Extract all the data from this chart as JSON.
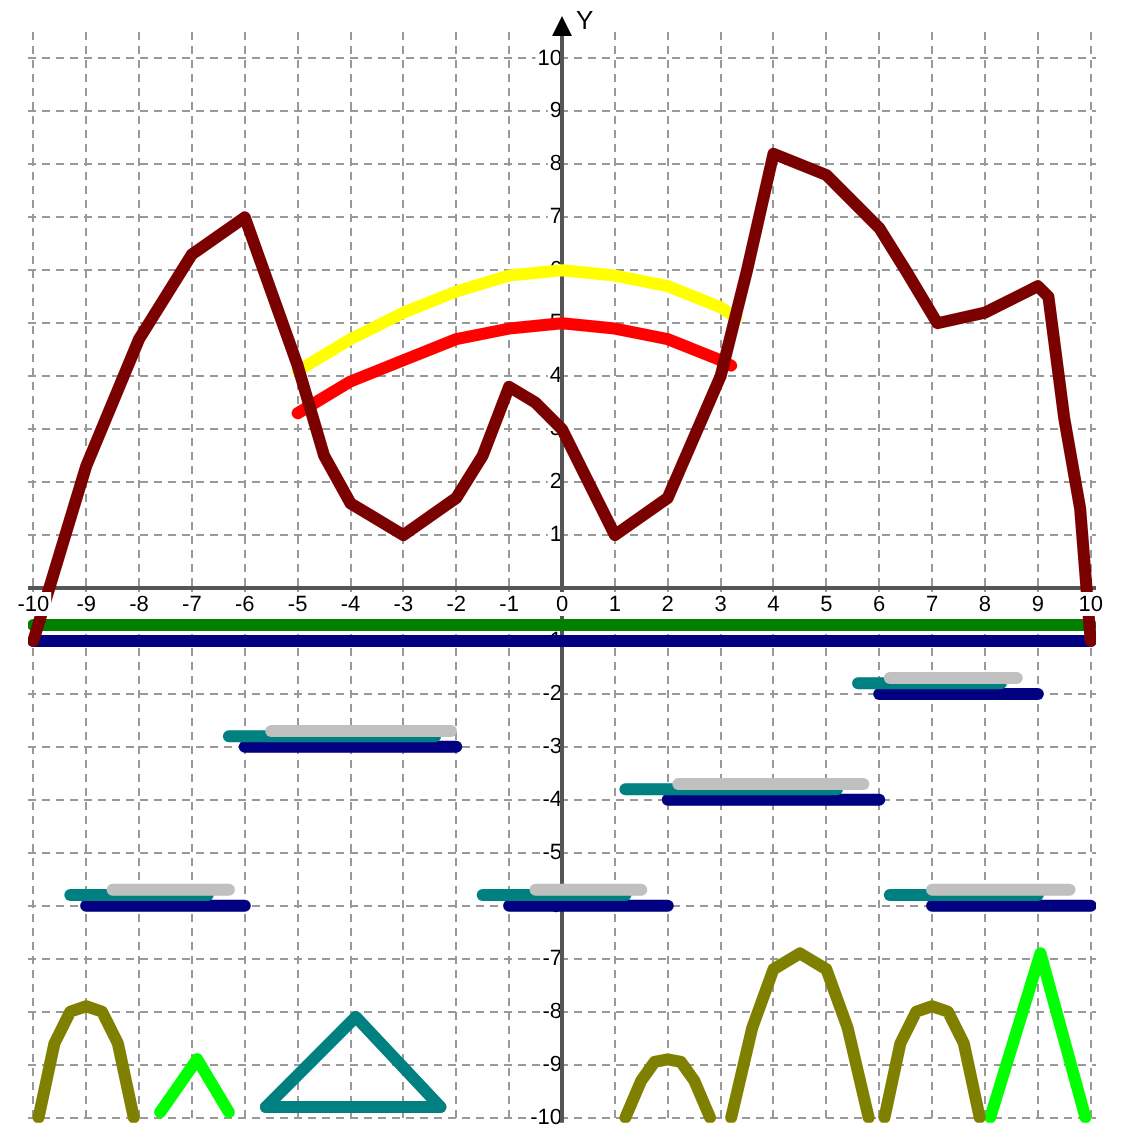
{
  "chart_data": {
    "type": "line",
    "ylabel": "Y",
    "xlim": [
      -10.1,
      10.1
    ],
    "ylim": [
      -10.1,
      10.5
    ],
    "xticks": [
      -10,
      -9,
      -8,
      -7,
      -6,
      -5,
      -4,
      -3,
      -2,
      -1,
      0,
      1,
      2,
      3,
      4,
      5,
      6,
      7,
      8,
      9,
      10
    ],
    "yticks": [
      -10,
      -9,
      -8,
      -7,
      -6,
      -5,
      -4,
      -3,
      -2,
      -1,
      1,
      2,
      3,
      4,
      5,
      6,
      7,
      8,
      9,
      10
    ],
    "grid": true,
    "legend": false,
    "marker": "none",
    "series": [
      {
        "color": "#7b0000",
        "x": [
          -10,
          -9,
          -8,
          -7,
          -6,
          -5,
          -4.5,
          -4,
          -3,
          -2,
          -1.5,
          -1,
          -0.5,
          0,
          0.5,
          1,
          2,
          3,
          3.5,
          4,
          5,
          6,
          6.5,
          7.1,
          8,
          9,
          9.2,
          9.5,
          9.8,
          10
        ],
        "values": [
          -1,
          2.3,
          4.7,
          6.3,
          7,
          4.2,
          2.5,
          1.6,
          1,
          1.7,
          2.5,
          3.8,
          3.5,
          3,
          2,
          1,
          1.7,
          4,
          6,
          8.2,
          7.8,
          6.8,
          6,
          5,
          5.2,
          5.7,
          5.5,
          3.2,
          1.5,
          -1
        ]
      },
      {
        "color": "#ffff00",
        "x": [
          -5,
          -4,
          -3,
          -2,
          -1,
          0,
          1,
          2,
          3,
          3.3
        ],
        "values": [
          4.1,
          4.7,
          5.2,
          5.6,
          5.9,
          6,
          5.9,
          5.7,
          5.3,
          5.1
        ]
      },
      {
        "color": "#ff0000",
        "x": [
          -5,
          -4,
          -3,
          -2,
          -1,
          0,
          1,
          2,
          3,
          3.2
        ],
        "values": [
          3.3,
          3.9,
          4.3,
          4.7,
          4.9,
          5,
          4.9,
          4.7,
          4.3,
          4.2
        ]
      },
      {
        "color": "#007f00",
        "x": [
          -10,
          10
        ],
        "values": [
          -0.7,
          -0.7
        ]
      },
      {
        "color": "#000080",
        "x": [
          -10,
          10
        ],
        "values": [
          -1,
          -1
        ]
      },
      {
        "color": "#c0c0c0",
        "x": [
          -8.5,
          -6.3
        ],
        "values": [
          -5.7,
          -5.7
        ]
      },
      {
        "color": "#c0c0c0",
        "x": [
          -5.5,
          -2.1
        ],
        "values": [
          -2.7,
          -2.7
        ]
      },
      {
        "color": "#c0c0c0",
        "x": [
          -0.5,
          1.5
        ],
        "values": [
          -5.7,
          -5.7
        ]
      },
      {
        "color": "#c0c0c0",
        "x": [
          2.2,
          5.7
        ],
        "values": [
          -3.7,
          -3.7
        ]
      },
      {
        "color": "#c0c0c0",
        "x": [
          6.2,
          8.6
        ],
        "values": [
          -1.7,
          -1.7
        ]
      },
      {
        "color": "#c0c0c0",
        "x": [
          7,
          9.6
        ],
        "values": [
          -5.7,
          -5.7
        ]
      },
      {
        "color": "#008080",
        "x": [
          -9.3,
          -6.7
        ],
        "values": [
          -5.8,
          -5.8
        ]
      },
      {
        "color": "#008080",
        "x": [
          -6.3,
          -2.4
        ],
        "values": [
          -2.8,
          -2.8
        ]
      },
      {
        "color": "#008080",
        "x": [
          -1.5,
          1.2
        ],
        "values": [
          -5.8,
          -5.8
        ]
      },
      {
        "color": "#008080",
        "x": [
          1.2,
          5.2
        ],
        "values": [
          -3.8,
          -3.8
        ]
      },
      {
        "color": "#008080",
        "x": [
          5.6,
          8.3
        ],
        "values": [
          -1.8,
          -1.8
        ]
      },
      {
        "color": "#008080",
        "x": [
          6.2,
          9
        ],
        "values": [
          -5.8,
          -5.8
        ]
      },
      {
        "color": "#000080",
        "x": [
          -9,
          -6
        ],
        "values": [
          -6,
          -6
        ]
      },
      {
        "color": "#000080",
        "x": [
          -6,
          -2
        ],
        "values": [
          -3,
          -3
        ]
      },
      {
        "color": "#000080",
        "x": [
          -1,
          2
        ],
        "values": [
          -6,
          -6
        ]
      },
      {
        "color": "#000080",
        "x": [
          2,
          6
        ],
        "values": [
          -4,
          -4
        ]
      },
      {
        "color": "#000080",
        "x": [
          6,
          9
        ],
        "values": [
          -2,
          -2
        ]
      },
      {
        "color": "#000080",
        "x": [
          7,
          10
        ],
        "values": [
          -6,
          -6
        ]
      },
      {
        "color": "#808000",
        "x": [
          -9.9,
          -9.6,
          -9.3,
          -9,
          -8.7,
          -8.4,
          -8.1
        ],
        "values": [
          -10,
          -8.6,
          -8,
          -7.9,
          -8,
          -8.6,
          -10
        ]
      },
      {
        "color": "#00ff00",
        "x": [
          -7.6,
          -6.9,
          -6.3
        ],
        "values": [
          -9.9,
          -8.9,
          -9.9
        ]
      },
      {
        "color": "#008080",
        "x": [
          -5.6,
          -3.9,
          -2.3
        ],
        "values": [
          -9.8,
          -8.1,
          -9.8
        ]
      },
      {
        "color": "#008080",
        "x": [
          -5.6,
          -2.3
        ],
        "values": [
          -9.8,
          -9.8
        ]
      },
      {
        "color": "#808000",
        "x": [
          1.2,
          1.5,
          1.75,
          2,
          2.25,
          2.5,
          2.8
        ],
        "values": [
          -10,
          -9.3,
          -8.95,
          -8.9,
          -8.95,
          -9.3,
          -10
        ]
      },
      {
        "color": "#808000",
        "x": [
          3.2,
          3.6,
          4,
          4.5,
          5,
          5.4,
          5.8
        ],
        "values": [
          -10,
          -8.3,
          -7.2,
          -6.9,
          -7.2,
          -8.3,
          -10
        ]
      },
      {
        "color": "#808000",
        "x": [
          6.1,
          6.4,
          6.7,
          7,
          7.3,
          7.6,
          7.9
        ],
        "values": [
          -10,
          -8.6,
          -8,
          -7.9,
          -8,
          -8.6,
          -10
        ]
      },
      {
        "color": "#00ff00",
        "x": [
          8.1,
          9.05,
          9.9
        ],
        "values": [
          -10,
          -6.9,
          -10
        ]
      }
    ]
  }
}
